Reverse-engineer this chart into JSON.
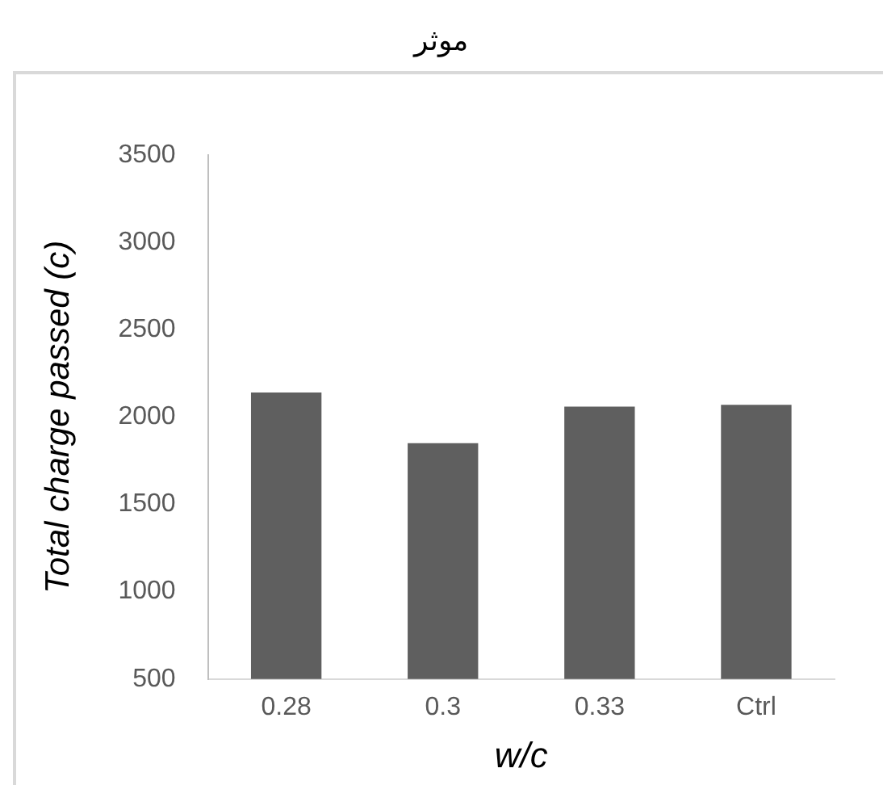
{
  "chart_data": {
    "type": "bar",
    "title": "موثر",
    "xlabel": "w/c",
    "ylabel": "Total charge passed (c)",
    "categories": [
      "0.28",
      "0.3",
      "0.33",
      "Ctrl"
    ],
    "values": [
      2140,
      1850,
      2060,
      2070
    ],
    "color": "#5f5f5f",
    "ylim": [
      500,
      3500
    ],
    "yticks": [
      500,
      1000,
      1500,
      2000,
      2500,
      3000,
      3500
    ],
    "grid": false,
    "legend": false
  }
}
